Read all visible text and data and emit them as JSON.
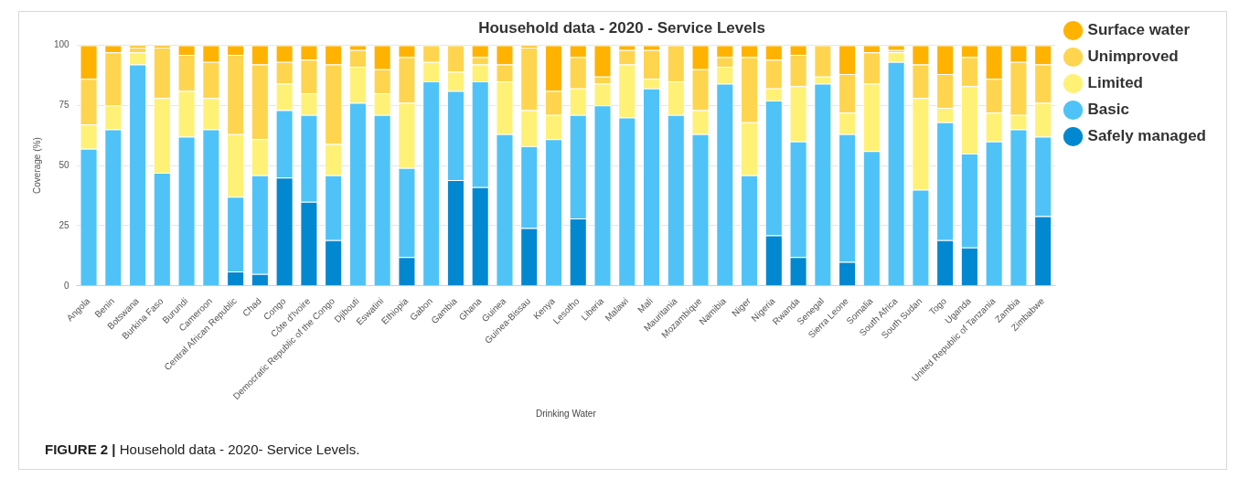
{
  "chart_data": {
    "type": "bar",
    "title": "Household data - 2020 - Service Levels",
    "xlabel": "Drinking Water",
    "ylabel": "Coverage (%)",
    "categories": [
      "Angola",
      "Benin",
      "Botswana",
      "Burkina Faso",
      "Burundi",
      "Cameroon",
      "Central African Republic",
      "Chad",
      "Congo",
      "Côte d'Ivoire",
      "Democratic Republic of the Congo",
      "Djibouti",
      "Eswatini",
      "Ethiopia",
      "Gabon",
      "Gambia",
      "Ghana",
      "Guinea",
      "Guinea-Bissau",
      "Kenya",
      "Lesotho",
      "Liberia",
      "Malawi",
      "Mali",
      "Mauritania",
      "Mozambique",
      "Namibia",
      "Niger",
      "Nigeria",
      "Rwanda",
      "Senegal",
      "Sierra Leone",
      "Somalia",
      "South Africa",
      "South Sudan",
      "Togo",
      "Uganda",
      "United Republic of Tanzania",
      "Zambia",
      "Zimbabwe"
    ],
    "series": [
      {
        "name": "Safely managed",
        "color": "#0288d1",
        "values": [
          0,
          0,
          0,
          0,
          0,
          0,
          6,
          5,
          45,
          35,
          19,
          0,
          0,
          12,
          0,
          44,
          41,
          0,
          24,
          0,
          28,
          0,
          0,
          0,
          0,
          0,
          0,
          0,
          21,
          12,
          0,
          10,
          0,
          0,
          0,
          19,
          16,
          0,
          0,
          29
        ]
      },
      {
        "name": "Basic",
        "color": "#4fc3f7",
        "values": [
          57,
          65,
          92,
          47,
          62,
          65,
          31,
          41,
          28,
          36,
          27,
          76,
          71,
          37,
          85,
          37,
          44,
          63,
          34,
          61,
          43,
          75,
          70,
          82,
          71,
          63,
          84,
          46,
          56,
          48,
          84,
          53,
          56,
          93,
          40,
          49,
          39,
          60,
          65,
          33
        ]
      },
      {
        "name": "Limited",
        "color": "#fff176",
        "values": [
          10,
          10,
          5,
          31,
          19,
          13,
          26,
          15,
          11,
          9,
          13,
          15,
          9,
          27,
          8,
          8,
          7,
          22,
          15,
          10,
          11,
          9,
          22,
          4,
          14,
          10,
          7,
          22,
          5,
          23,
          3,
          9,
          28,
          4,
          38,
          6,
          28,
          12,
          6,
          14
        ]
      },
      {
        "name": "Unimproved",
        "color": "#ffd54f",
        "values": [
          19,
          22,
          2,
          21,
          15,
          15,
          33,
          31,
          9,
          14,
          33,
          7,
          10,
          19,
          7,
          11,
          3,
          7,
          26,
          10,
          13,
          3,
          6,
          12,
          15,
          17,
          4,
          27,
          12,
          13,
          13,
          16,
          13,
          1,
          14,
          14,
          12,
          14,
          22,
          16
        ]
      },
      {
        "name": "Surface water",
        "color": "#ffb300",
        "values": [
          14,
          3,
          1,
          1,
          4,
          7,
          4,
          8,
          7,
          6,
          8,
          2,
          10,
          5,
          0,
          0,
          5,
          8,
          1,
          19,
          5,
          13,
          2,
          2,
          0,
          10,
          5,
          5,
          6,
          4,
          0,
          12,
          3,
          2,
          8,
          12,
          5,
          14,
          7,
          8
        ]
      }
    ],
    "stacked": true,
    "ylim": [
      0,
      100
    ],
    "yticks": [
      0,
      25,
      50,
      75,
      100
    ],
    "grid": "y",
    "legend": "top right",
    "annotations": [
      "FIGURE 2 | Household data - 2020- Service Levels."
    ]
  }
}
